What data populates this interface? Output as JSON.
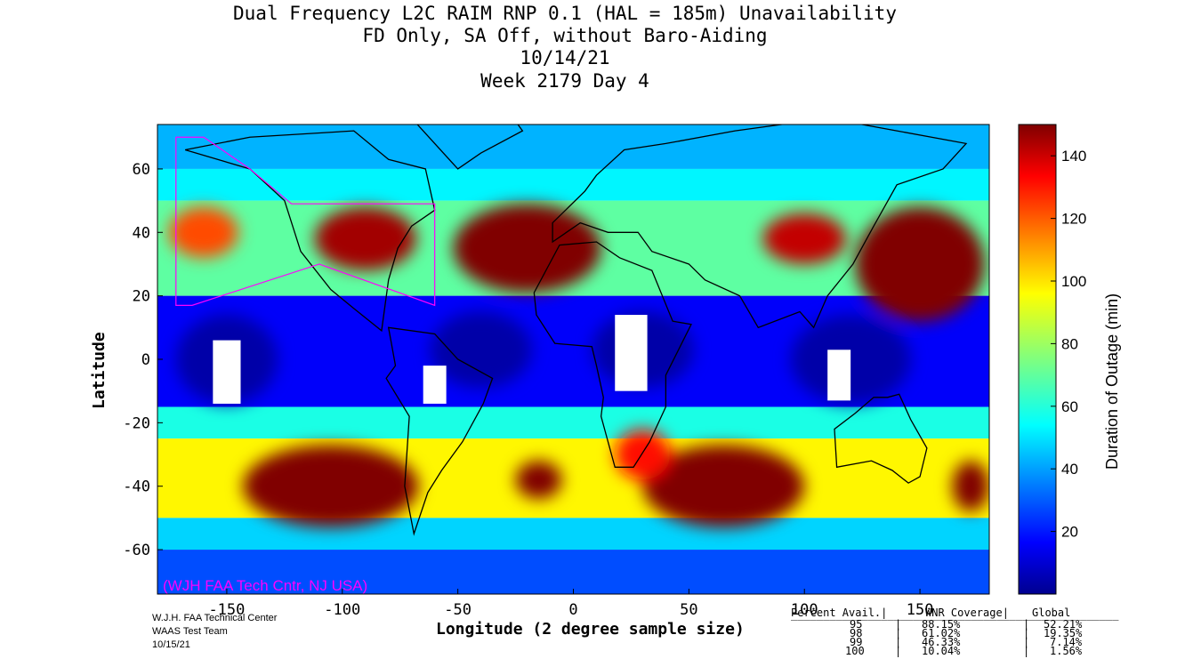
{
  "title": {
    "line1": "Dual Frequency L2C RAIM RNP 0.1 (HAL = 185m) Unavailability",
    "line2": "FD Only, SA Off, without Baro-Aiding",
    "line3": "10/14/21",
    "line4": "Week 2179 Day 4"
  },
  "watermark": "(WJH FAA Tech Cntr, NJ USA)",
  "footer": {
    "org": "W.J.H. FAA Technical Center",
    "team": "WAAS Test Team",
    "date": "10/15/21"
  },
  "stats_table": {
    "headers": [
      "Percent Avail.",
      "WNR Coverage",
      "Global"
    ],
    "rows": [
      [
        "95",
        "88.15%",
        "52.21%"
      ],
      [
        "98",
        "61.02%",
        "19.35%"
      ],
      [
        "99",
        "46.33%",
        "7.14%"
      ],
      [
        "100",
        "10.04%",
        "1.56%"
      ]
    ]
  },
  "colors": {
    "low": "#00008f",
    "mid": "#7fff7f",
    "high": "#7f0000",
    "coastline": "#000000",
    "region_outline": "#ff00ff",
    "watermark": "#ff00ff"
  },
  "chart_data": {
    "type": "heatmap",
    "xlabel": "Longitude (2 degree sample size)",
    "ylabel": "Latitude",
    "colorbar_label": "Duration of Outage (min)",
    "xlim": [
      -180,
      180
    ],
    "ylim": [
      -74,
      74
    ],
    "x_ticks": [
      -150,
      -100,
      -50,
      0,
      50,
      100,
      150
    ],
    "y_ticks": [
      -60,
      -40,
      -20,
      0,
      20,
      40,
      60
    ],
    "colorbar_ticks": [
      20,
      40,
      60,
      80,
      100,
      120,
      140
    ],
    "colorbar_range": [
      0,
      150
    ],
    "colormap": "jet",
    "high_outage_regions": [
      {
        "lon": -105,
        "lat": -38,
        "value": 150
      },
      {
        "lon": 65,
        "lat": -38,
        "value": 150
      },
      {
        "lon": -30,
        "lat": 35,
        "value": 150
      },
      {
        "lon": 150,
        "lat": 30,
        "value": 150
      },
      {
        "lon": -95,
        "lat": 38,
        "value": 145
      },
      {
        "lon": -15,
        "lat": -40,
        "value": 150
      },
      {
        "lon": 172,
        "lat": -40,
        "value": 150
      },
      {
        "lon": 100,
        "lat": 38,
        "value": 140
      }
    ],
    "low_outage_regions": [
      {
        "lon": -150,
        "lat": 0,
        "value": 5
      },
      {
        "lon": -40,
        "lat": 5,
        "value": 5
      },
      {
        "lon": 30,
        "lat": 5,
        "value": 5
      },
      {
        "lon": 120,
        "lat": 0,
        "value": 5
      }
    ]
  }
}
